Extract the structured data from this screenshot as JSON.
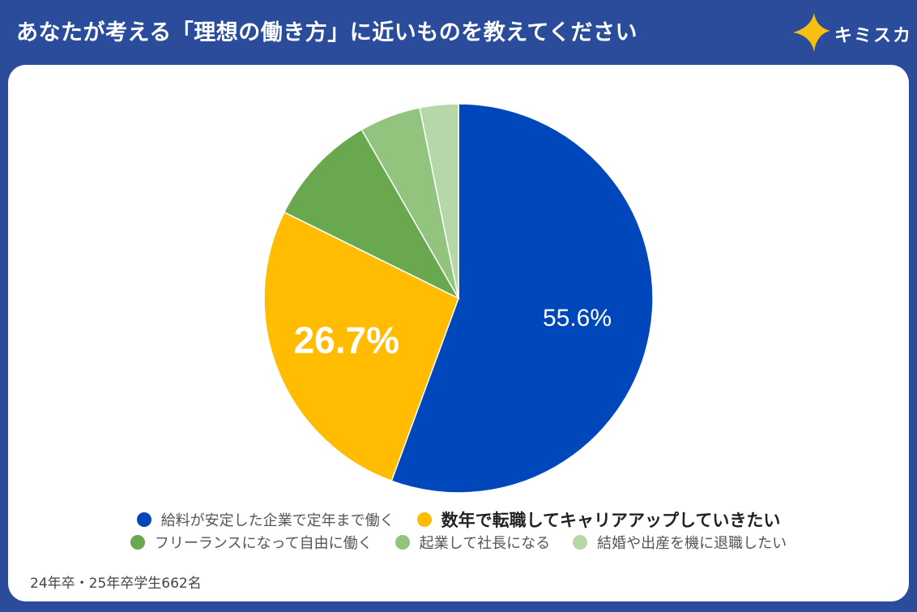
{
  "header": {
    "title": "あなたが考える「理想の働き方」に近いものを教えてください",
    "logo_text": "キミスカ"
  },
  "chart_data": {
    "type": "pie",
    "title": "あなたが考える「理想の働き方」に近いものを教えてください",
    "start": "top, clockwise",
    "slices": [
      {
        "name": "給料が安定した企業で定年まで働く",
        "value": 55.6,
        "label": "55.6%",
        "color": "#0047bb",
        "emphasis": false
      },
      {
        "name": "数年で転職してキャリアアップしていきたい",
        "value": 26.7,
        "label": "26.7%",
        "color": "#ffbc00",
        "emphasis": true
      },
      {
        "name": "フリーランスになって自由に働く",
        "value": 9.4,
        "label": "",
        "color": "#6aa84f",
        "emphasis": false
      },
      {
        "name": "起業して社長になる",
        "value": 5.1,
        "label": "",
        "color": "#93c47d",
        "emphasis": false
      },
      {
        "name": "結婚や出産を機に退職したい",
        "value": 3.2,
        "label": "",
        "color": "#b6d7a8",
        "emphasis": false
      }
    ],
    "legend_position": "bottom"
  },
  "footnote": "24年卒・25年卒学生662名"
}
